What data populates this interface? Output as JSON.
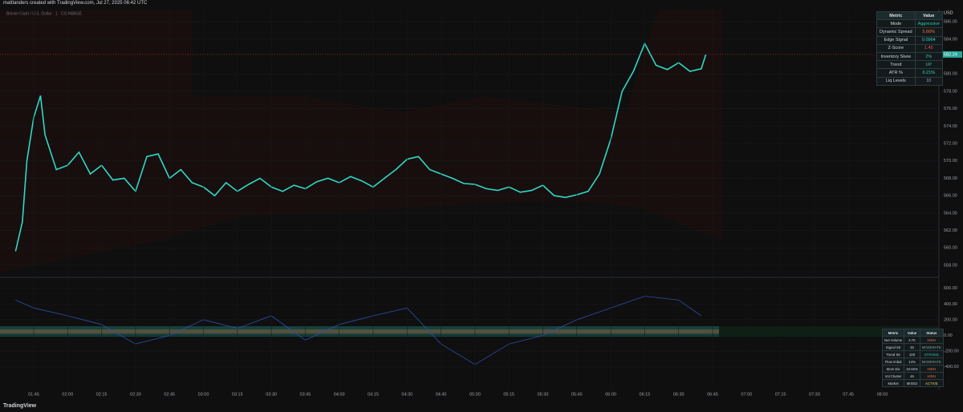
{
  "header": "mattlanders created with TradingView.com, Jul 27, 2025 06:42 UTC",
  "footer": "TradingView",
  "time_axis": [
    "01:45",
    "02:00",
    "02:15",
    "02:30",
    "02:45",
    "03:00",
    "03:15",
    "03:30",
    "03:45",
    "04:00",
    "04:15",
    "04:30",
    "04:45",
    "05:00",
    "05:15",
    "05:30",
    "05:45",
    "06:00",
    "06:15",
    "06:30",
    "06:45",
    "07:00",
    "07:15",
    "07:30",
    "07:45",
    "08:00"
  ],
  "chart_data": [
    {
      "type": "line",
      "title": "Bitcoin Cash / U.S. Dollar · 1 · COINBASE",
      "y_unit": "USD",
      "color": "#2fd9c4",
      "x": [
        "01:37",
        "01:40",
        "01:42",
        "01:45",
        "01:48",
        "01:50",
        "01:55",
        "02:00",
        "02:05",
        "02:10",
        "02:15",
        "02:20",
        "02:25",
        "02:30",
        "02:35",
        "02:40",
        "02:45",
        "02:50",
        "02:55",
        "03:00",
        "03:05",
        "03:10",
        "03:15",
        "03:20",
        "03:25",
        "03:30",
        "03:35",
        "03:40",
        "03:45",
        "03:50",
        "03:55",
        "04:00",
        "04:05",
        "04:10",
        "04:15",
        "04:20",
        "04:25",
        "04:30",
        "04:35",
        "04:40",
        "04:45",
        "04:50",
        "04:55",
        "05:00",
        "05:05",
        "05:10",
        "05:15",
        "05:20",
        "05:25",
        "05:30",
        "05:35",
        "05:40",
        "05:45",
        "05:50",
        "05:55",
        "06:00",
        "06:05",
        "06:10",
        "06:15",
        "06:20",
        "06:25",
        "06:30",
        "06:35",
        "06:40",
        "06:42"
      ],
      "values": [
        559.6,
        563.0,
        570.0,
        575.0,
        577.5,
        573.0,
        569.0,
        569.5,
        571.0,
        568.5,
        569.5,
        567.8,
        568.0,
        566.5,
        570.5,
        570.8,
        568.0,
        569.0,
        567.5,
        567.0,
        566.0,
        567.5,
        566.5,
        567.3,
        568.0,
        567.0,
        566.5,
        567.2,
        566.8,
        567.6,
        568.0,
        567.5,
        568.2,
        567.7,
        567.0,
        568.0,
        569.0,
        570.2,
        570.5,
        569.0,
        568.5,
        568.0,
        567.4,
        567.3,
        566.8,
        566.6,
        567.0,
        566.4,
        566.6,
        567.2,
        566.0,
        565.8,
        566.1,
        566.5,
        568.5,
        572.5,
        578.0,
        580.3,
        583.5,
        581.0,
        580.5,
        581.3,
        580.3,
        580.6,
        582.24
      ],
      "last_price": 582.24,
      "ylim": [
        556.7,
        587.4
      ],
      "yticks": [
        {
          "value": 586,
          "label": "586.00"
        },
        {
          "value": 584,
          "label": "584.00"
        },
        {
          "value": 580,
          "label": "580.00"
        },
        {
          "value": 578,
          "label": "578.00"
        },
        {
          "value": 576,
          "label": "576.00"
        },
        {
          "value": 574,
          "label": "574.00"
        },
        {
          "value": 572,
          "label": "572.00"
        },
        {
          "value": 570,
          "label": "570.00"
        },
        {
          "value": 568,
          "label": "568.00"
        },
        {
          "value": 566,
          "label": "566.00"
        },
        {
          "value": 564,
          "label": "564.00"
        },
        {
          "value": 562,
          "label": "562.00"
        },
        {
          "value": 560,
          "label": "560.00"
        },
        {
          "value": 558,
          "label": "558.00"
        }
      ]
    },
    {
      "type": "line",
      "color": "#2f4fa8",
      "x": [
        "01:37",
        "01:45",
        "02:00",
        "02:15",
        "02:30",
        "02:45",
        "03:00",
        "03:15",
        "03:30",
        "03:45",
        "04:00",
        "04:15",
        "04:30",
        "04:45",
        "05:00",
        "05:15",
        "05:30",
        "05:45",
        "06:00",
        "06:15",
        "06:30",
        "06:40"
      ],
      "values": [
        450,
        350,
        250,
        140,
        -110,
        0,
        200,
        90,
        250,
        -60,
        140,
        250,
        350,
        -110,
        -370,
        -110,
        0,
        200,
        350,
        500,
        450,
        250
      ],
      "ylim": [
        -700,
        730
      ],
      "yticks": [
        {
          "value": 600,
          "label": "600.00"
        },
        {
          "value": 400,
          "label": "400.00"
        },
        {
          "value": 200,
          "label": "200.00"
        },
        {
          "value": 0,
          "label": "0.00"
        },
        {
          "value": -200,
          "label": "-200.00"
        },
        {
          "value": -400,
          "label": "-400.00"
        }
      ]
    }
  ],
  "table_top": {
    "header": [
      "Metric",
      "Value"
    ],
    "rows": [
      {
        "metric": "Mode",
        "value": "Aggressive",
        "color": "#26c6a0"
      },
      {
        "metric": "Dynamic Spread",
        "value": "5.66%",
        "color": "#ff6e40"
      },
      {
        "metric": "Edge Signal",
        "value": "0.0964",
        "color": "#2fd9c4"
      },
      {
        "metric": "Z-Score",
        "value": "1.45",
        "color": "#ef5350"
      },
      {
        "metric": "Inventory Skew",
        "value": "2%",
        "color": "#26c6a0"
      },
      {
        "metric": "Trend",
        "value": "UP",
        "color": "#26c6a0"
      },
      {
        "metric": "ATR %",
        "value": "0.21%",
        "color": "#2fd9c4"
      },
      {
        "metric": "Liq Levels",
        "value": "10",
        "color": "#b39ddb"
      }
    ]
  },
  "table_bottom": {
    "header": [
      "Metric",
      "Value",
      "Status"
    ],
    "rows": [
      {
        "metric": "Net Volume",
        "value": "2.7K",
        "status": "HIGH",
        "color": "#ff7043"
      },
      {
        "metric": "Signal Str",
        "value": "45",
        "status": "MODERATE",
        "color": "#81a98f"
      },
      {
        "metric": "Trend Str",
        "value": "100",
        "status": "STRONG",
        "color": "#26c6a0"
      },
      {
        "metric": "Flow Imbal",
        "value": "14%",
        "status": "MODERATE",
        "color": "#81a98f"
      },
      {
        "metric": "Mom Div",
        "value": "10.92%",
        "status": "HIGH",
        "color": "#ff7043"
      },
      {
        "metric": "Vol Cluster",
        "value": "46",
        "status": "HIGH",
        "color": "#ff7043"
      },
      {
        "metric": "Market",
        "value": "MIXED",
        "status": "ACTIVE",
        "color": "#ffd54f"
      }
    ]
  }
}
